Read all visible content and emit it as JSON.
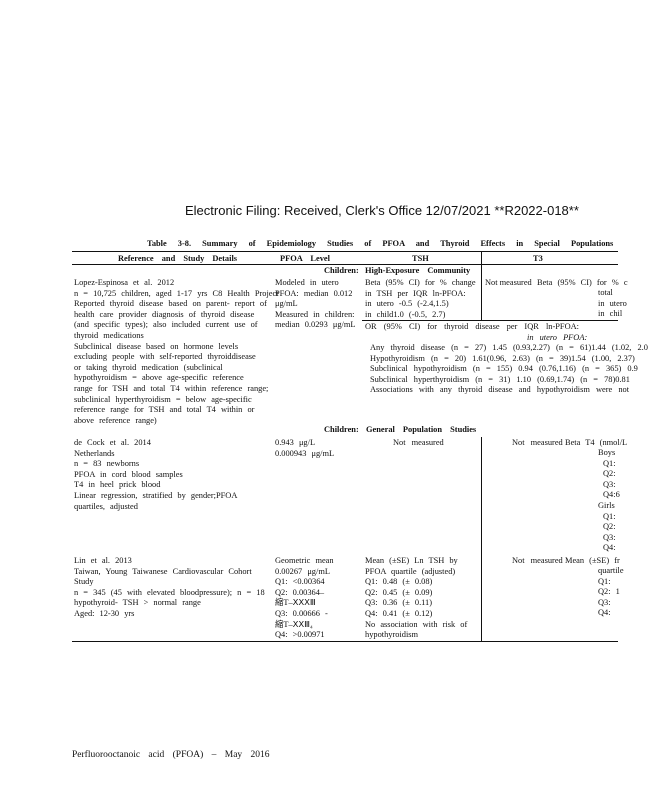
{
  "filing_header": "Electronic Filing: Received, Clerk's Office 12/07/2021 **R2022-018**",
  "table_title": "Table 3-8. Summary of Epidemiology Studies of PFOA and Thyroid Effects in Special Populations",
  "columns": [
    "Reference and Study Details",
    "PFOA Level",
    "TSH",
    "T3"
  ],
  "section1": {
    "label": "Children:",
    "title": "High-Exposure Community"
  },
  "section2": {
    "label": "Children:",
    "title": "General Population Studies"
  },
  "rows": [
    {
      "reference": [
        "Lopez-Espinosa et al. 2012",
        "n = 10,725 children, aged 1-17 yrs C8 Health Project",
        "Reported thyroid disease based on parent- report of",
        "health care provider diagnosis of thyroid disease",
        "(and specific types); also included current use of",
        "thyroid medications",
        "Subclinical disease based on hormone levels",
        "excluding people with self-reported thyroiddisease",
        "or taking thyroid medication (subclinical",
        "hypothyroidism = above age-specific reference",
        "range for TSH and total T4 within reference range;",
        "subclinical hyperthyroidism = below age-specific",
        "reference range for TSH and total T4 within or",
        "above reference range)"
      ],
      "pfoa": [
        "Modeled in utero",
        "PFOA: median 0.012",
        "μg/mL",
        "Measured in children:",
        "median 0.0293 μg/mL"
      ],
      "tsh": [
        "Beta (95% CI) for % change",
        "in TSH per IQR ln-PFOA:",
        "in utero -0.5 (-2.4,1.5)",
        "in child1.0 (-0.5, 2.7)"
      ],
      "t3": [
        "Not measured",
        "Beta (95% CI) for % c",
        "total",
        "in utero",
        "in chil"
      ],
      "or_block": [
        "OR (95% CI) for thyroid disease per IQR ln-PFOA:",
        "in utero PFOA:",
        "Any thyroid disease (n = 27) 1.45 (0.93,2.27) (n = 61)1.44 (1.02, 2.0",
        "Hypothyroidism (n = 20) 1.61(0.96, 2.63) (n = 39)1.54 (1.00, 2.37)",
        "Subclinical hypothyroidism (n = 155) 0.94 (0.76,1.16) (n = 365) 0.9",
        "Subclinical hyperthyroidism (n = 31) 1.10 (0.69,1.74) (n = 78)0.81",
        "Associations with any thyroid disease and hypothyroidism were not"
      ]
    },
    {
      "reference": [
        "de Cock et al. 2014",
        "Netherlands",
        "n = 83 newborns",
        "PFOA in cord blood samples",
        "T4 in heel prick blood",
        "Linear regression, stratified by gender;PFOA",
        "quartiles, adjusted"
      ],
      "pfoa": [
        "0.943 μg/L",
        "0.000943 μg/mL"
      ],
      "tsh": [
        "Not measured"
      ],
      "t3": [
        "Not measured",
        "Beta T4 (nmol/L",
        "Boys",
        "Q1:",
        "Q2:",
        "Q3:",
        "Q4:6",
        "Girls",
        "Q1:",
        "Q2:",
        "Q3:",
        "Q4:"
      ]
    },
    {
      "reference": [
        "Lin et al. 2013",
        "Taiwan, Young Taiwanese Cardiovascular Cohort",
        "Study",
        "n = 345 (45 with elevated bloodpressure); n = 18",
        "hypothyroid- TSH > normal range",
        "Aged: 12-30 yrs"
      ],
      "pfoa": [
        "Geometric mean",
        "0.00267 μg/mL",
        "Q1: <0.00364",
        "Q2: 0.00364–",
        "縮T–ⅩⅩⅩⅢ",
        "Q3: 0.00666 -",
        "縮T–ⅩⅩⅢ₄",
        "Q4: >0.00971"
      ],
      "tsh": [
        "Mean (±SE) Ln TSH by",
        "PFOA quartile (adjusted)",
        "Q1: 0.48 (± 0.08)",
        "Q2: 0.45 (± 0.09)",
        "Q3: 0.36 (± 0.11)",
        "Q4: 0.41 (± 0.12)",
        "No association with risk of",
        "hypothyroidism"
      ],
      "t3": [
        "Not measured",
        "Mean (±SE) fr",
        "quartile",
        "Q1:",
        "Q2: 1",
        "Q3:",
        "Q4:"
      ]
    }
  ],
  "footer": "Perfluorooctanoic acid (PFOA) – May 2016"
}
